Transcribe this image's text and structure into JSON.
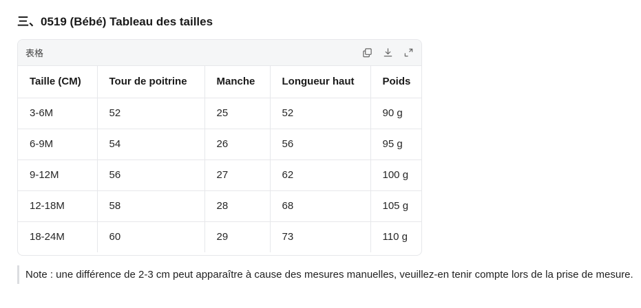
{
  "section": {
    "title": "三、0519 (Bébé) Tableau des tailles"
  },
  "table_card": {
    "label": "表格",
    "tools": [
      {
        "name": "copy-icon"
      },
      {
        "name": "download-icon"
      },
      {
        "name": "expand-icon"
      }
    ]
  },
  "table": {
    "headers": [
      "Taille (CM)",
      "Tour de poitrine",
      "Manche",
      "Longueur haut",
      "Poids"
    ],
    "rows": [
      [
        "3-6M",
        "52",
        "25",
        "52",
        "90 g"
      ],
      [
        "6-9M",
        "54",
        "26",
        "56",
        "95 g"
      ],
      [
        "9-12M",
        "56",
        "27",
        "62",
        "100 g"
      ],
      [
        "12-18M",
        "58",
        "28",
        "68",
        "105 g"
      ],
      [
        "18-24M",
        "60",
        "29",
        "73",
        "110 g"
      ]
    ]
  },
  "note": {
    "text": "Note : une différence de 2-3 cm peut apparaître à cause des mesures manuelles, veuillez-en tenir compte lors de la prise de mesure."
  }
}
